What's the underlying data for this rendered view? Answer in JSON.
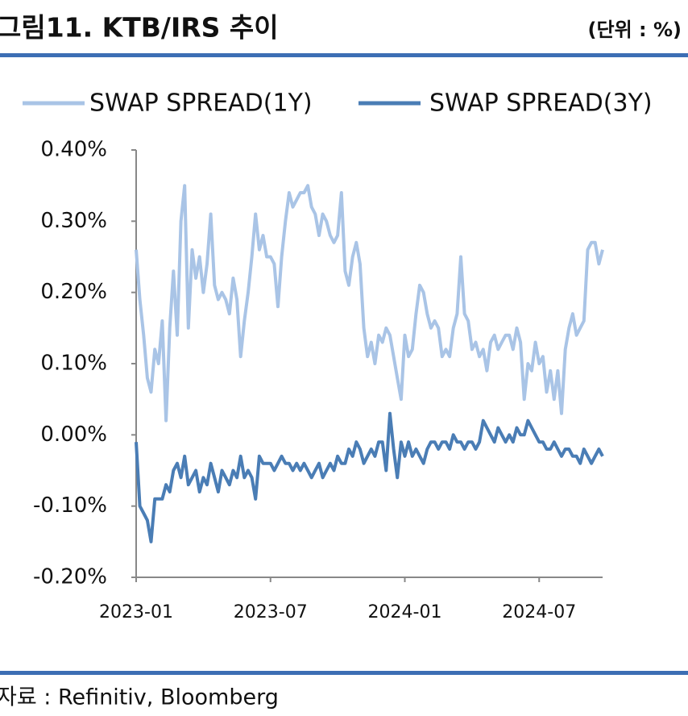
{
  "chart_data": {
    "type": "line",
    "title": "그림11. KTB/IRS 추이",
    "unit": "(단위 : %)",
    "source": "자료 : Refinitiv, Bloomberg",
    "categories": [
      "2023-01",
      null,
      null,
      null,
      null,
      null,
      null,
      null,
      null,
      null,
      null,
      null,
      null,
      null,
      null,
      null,
      null,
      null,
      null,
      null,
      null,
      null,
      null,
      null,
      null,
      null,
      null,
      null,
      null,
      null,
      null,
      null,
      null,
      null,
      null,
      null,
      "2023-07",
      null,
      null,
      null,
      null,
      null,
      null,
      null,
      null,
      null,
      null,
      null,
      null,
      null,
      null,
      null,
      null,
      null,
      null,
      null,
      null,
      null,
      null,
      null,
      null,
      null,
      null,
      null,
      null,
      null,
      null,
      null,
      null,
      null,
      null,
      null,
      "2024-01",
      null,
      null,
      null,
      null,
      null,
      null,
      null,
      null,
      null,
      null,
      null,
      null,
      null,
      null,
      null,
      null,
      null,
      null,
      null,
      null,
      null,
      null,
      null,
      null,
      null,
      null,
      null,
      null,
      null,
      null,
      null,
      null,
      null,
      null,
      null,
      "2024-07",
      null,
      null,
      null,
      null,
      null,
      null,
      null,
      null,
      null,
      null,
      null,
      null,
      null,
      null,
      null,
      null,
      null
    ],
    "series": [
      {
        "name": "SWAP SPREAD(1Y)",
        "color": "#a9c4e6",
        "values": [
          0.26,
          0.19,
          0.14,
          0.08,
          0.06,
          0.12,
          0.1,
          0.16,
          0.02,
          0.15,
          0.23,
          0.14,
          0.3,
          0.35,
          0.15,
          0.26,
          0.22,
          0.25,
          0.2,
          0.24,
          0.31,
          0.21,
          0.19,
          0.2,
          0.19,
          0.17,
          0.22,
          0.19,
          0.11,
          0.16,
          0.2,
          0.25,
          0.31,
          0.26,
          0.28,
          0.25,
          0.25,
          0.24,
          0.18,
          0.25,
          0.3,
          0.34,
          0.32,
          0.33,
          0.34,
          0.34,
          0.35,
          0.32,
          0.31,
          0.28,
          0.31,
          0.3,
          0.28,
          0.27,
          0.28,
          0.34,
          0.23,
          0.21,
          0.25,
          0.27,
          0.24,
          0.15,
          0.11,
          0.13,
          0.1,
          0.14,
          0.13,
          0.15,
          0.14,
          0.11,
          0.08,
          0.05,
          0.14,
          0.11,
          0.12,
          0.17,
          0.21,
          0.2,
          0.17,
          0.15,
          0.16,
          0.15,
          0.11,
          0.12,
          0.11,
          0.15,
          0.17,
          0.25,
          0.17,
          0.16,
          0.12,
          0.13,
          0.11,
          0.12,
          0.09,
          0.13,
          0.14,
          0.12,
          0.13,
          0.14,
          0.14,
          0.12,
          0.15,
          0.13,
          0.05,
          0.1,
          0.09,
          0.13,
          0.1,
          0.11,
          0.06,
          0.09,
          0.05,
          0.09,
          0.03,
          0.12,
          0.15,
          0.17,
          0.14,
          0.15,
          0.16,
          0.26,
          0.27,
          0.27,
          0.24,
          0.26
        ]
      },
      {
        "name": "SWAP SPREAD(3Y)",
        "color": "#4a7db5",
        "values": [
          -0.01,
          -0.1,
          -0.11,
          -0.12,
          -0.15,
          -0.09,
          -0.09,
          -0.09,
          -0.07,
          -0.08,
          -0.05,
          -0.04,
          -0.06,
          -0.03,
          -0.07,
          -0.06,
          -0.05,
          -0.08,
          -0.06,
          -0.07,
          -0.04,
          -0.06,
          -0.08,
          -0.05,
          -0.06,
          -0.07,
          -0.05,
          -0.06,
          -0.03,
          -0.06,
          -0.05,
          -0.06,
          -0.09,
          -0.03,
          -0.04,
          -0.04,
          -0.04,
          -0.05,
          -0.04,
          -0.03,
          -0.04,
          -0.04,
          -0.05,
          -0.04,
          -0.05,
          -0.04,
          -0.05,
          -0.06,
          -0.05,
          -0.04,
          -0.06,
          -0.05,
          -0.04,
          -0.05,
          -0.03,
          -0.04,
          -0.04,
          -0.02,
          -0.03,
          -0.01,
          -0.02,
          -0.04,
          -0.03,
          -0.02,
          -0.03,
          -0.01,
          -0.01,
          -0.05,
          0.03,
          -0.02,
          -0.06,
          -0.01,
          -0.03,
          -0.01,
          -0.03,
          -0.02,
          -0.03,
          -0.04,
          -0.02,
          -0.01,
          -0.01,
          -0.02,
          -0.01,
          -0.01,
          -0.02,
          0.0,
          -0.01,
          -0.01,
          -0.02,
          -0.01,
          -0.01,
          -0.02,
          -0.01,
          0.02,
          0.01,
          0.0,
          -0.01,
          0.01,
          0.0,
          -0.01,
          0.0,
          -0.01,
          0.01,
          0.0,
          0.0,
          0.02,
          0.01,
          0.0,
          -0.01,
          -0.01,
          -0.02,
          -0.02,
          -0.01,
          -0.02,
          -0.03,
          -0.02,
          -0.02,
          -0.03,
          -0.03,
          -0.04,
          -0.02,
          -0.03,
          -0.04,
          -0.03,
          -0.02,
          -0.03
        ]
      }
    ],
    "ylim": [
      -0.2,
      0.4
    ],
    "yticks": [
      {
        "value": -0.2,
        "label": "-0.20%"
      },
      {
        "value": -0.1,
        "label": "-0.10%"
      },
      {
        "value": 0,
        "label": "0.00%"
      },
      {
        "value": 0.1,
        "label": "0.10%"
      },
      {
        "value": 0.2,
        "label": "0.20%"
      },
      {
        "value": 0.3,
        "label": "0.30%"
      },
      {
        "value": 0.4,
        "label": "0.40%"
      }
    ],
    "grid": false,
    "legend": "top"
  }
}
